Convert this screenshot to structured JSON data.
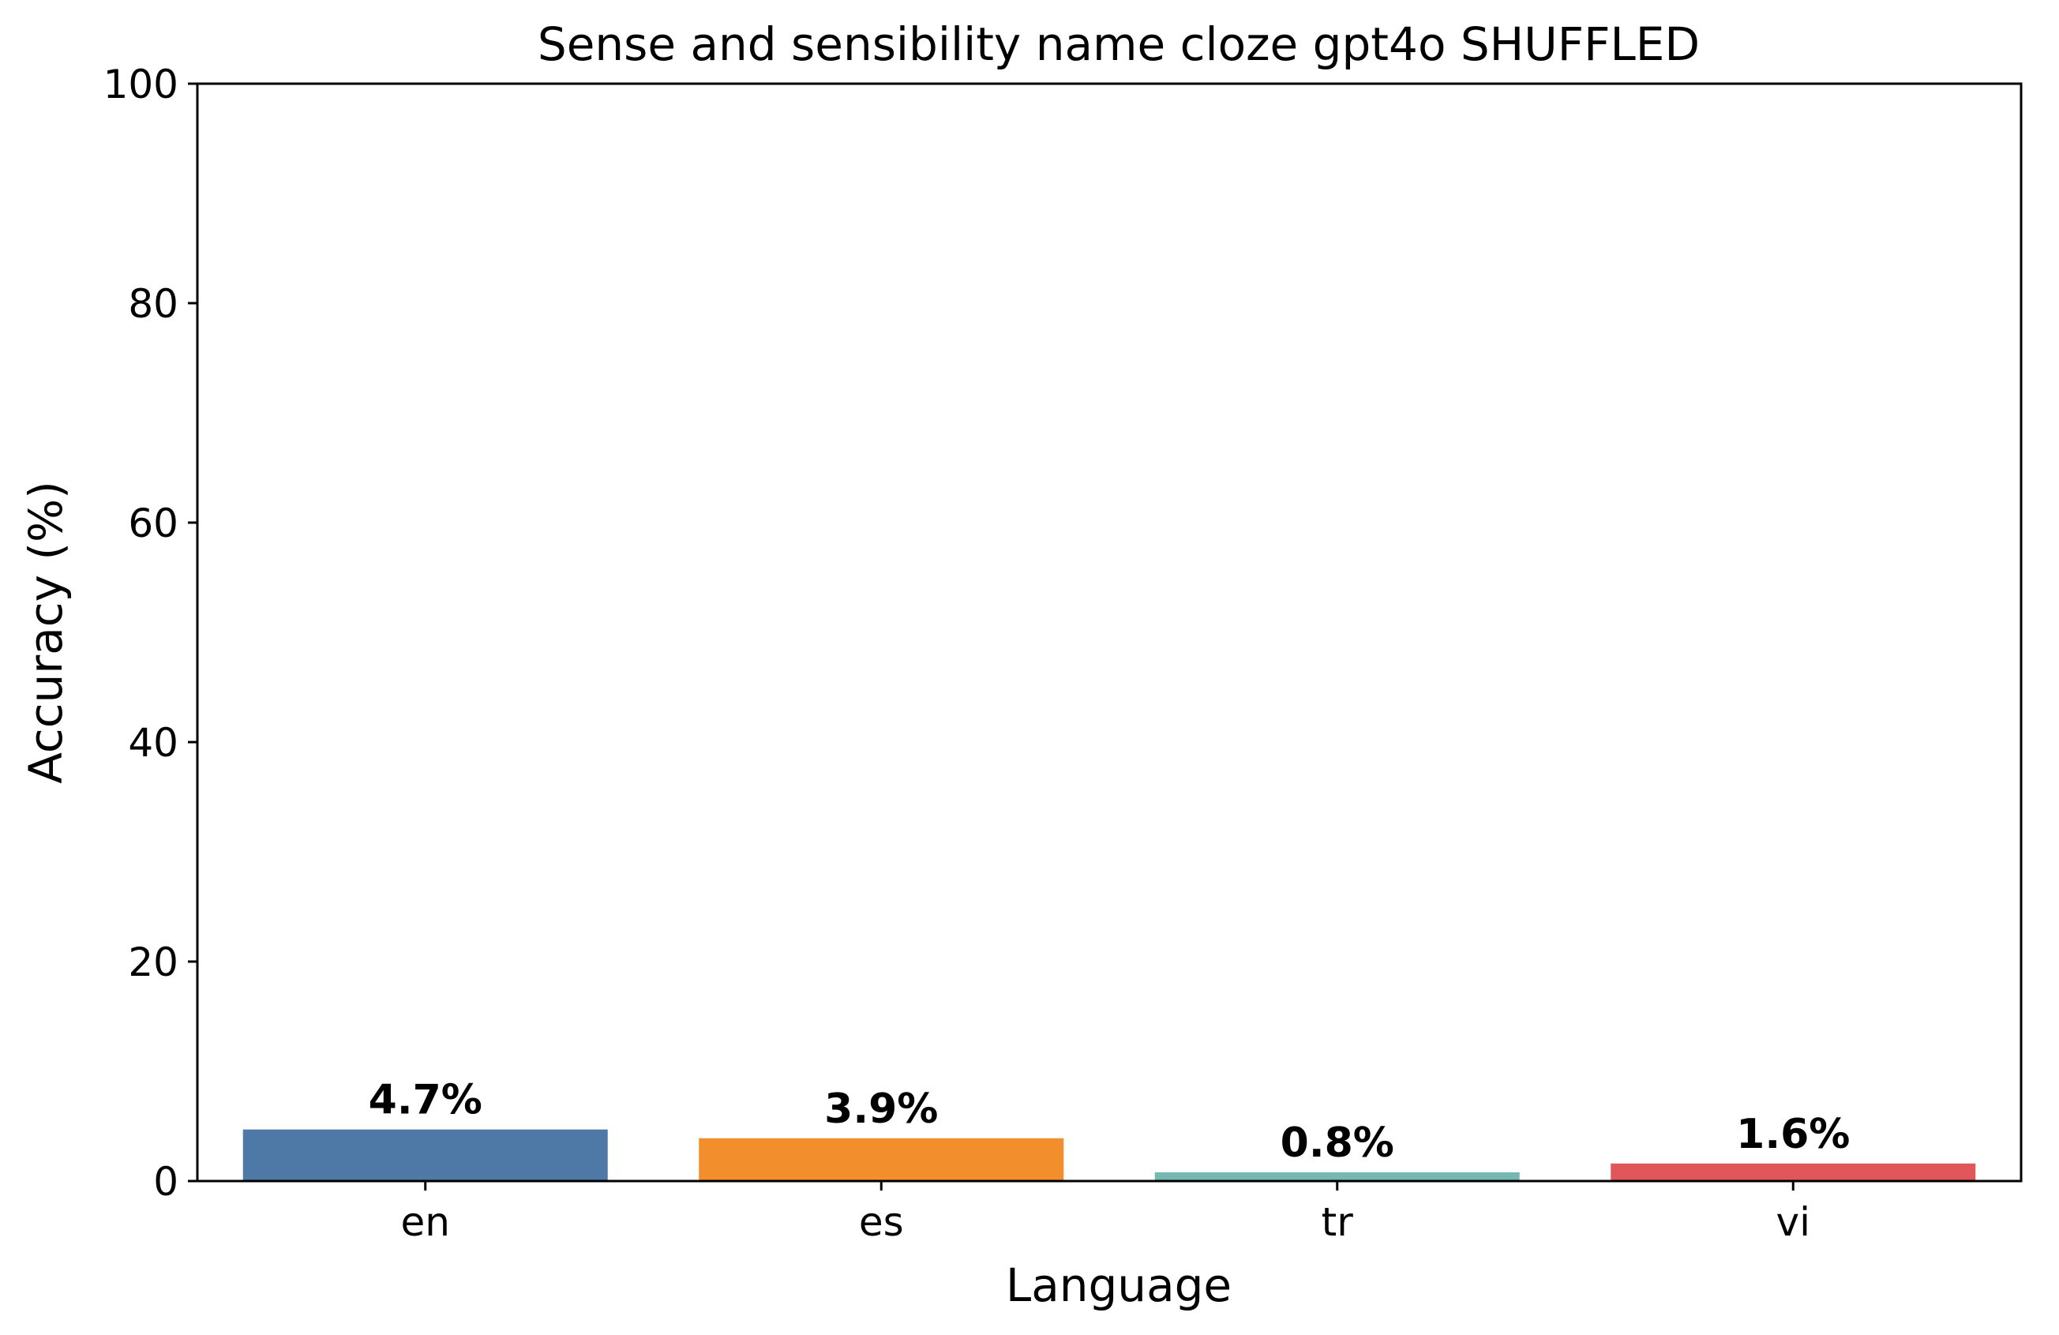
{
  "chart_data": {
    "type": "bar",
    "title": "Sense and sensibility name cloze gpt4o SHUFFLED",
    "xlabel": "Language",
    "ylabel": "Accuracy (%)",
    "categories": [
      "en",
      "es",
      "tr",
      "vi"
    ],
    "values": [
      4.7,
      3.9,
      0.8,
      1.6
    ],
    "data_labels": [
      "4.7%",
      "3.9%",
      "0.8%",
      "1.6%"
    ],
    "colors": [
      "#4e79a7",
      "#f28e2b",
      "#76b7b2",
      "#e15759"
    ],
    "ylim": [
      0,
      100
    ],
    "yticks": [
      0,
      20,
      40,
      60,
      80,
      100
    ],
    "grid": false,
    "legend": "none"
  }
}
